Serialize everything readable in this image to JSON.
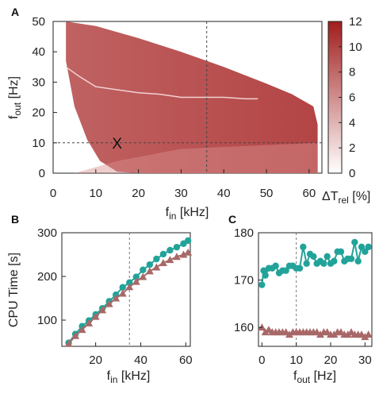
{
  "chart_data": [
    {
      "panel": "A",
      "type": "heatmap",
      "xlabel": "f",
      "xlabel_sub": "in",
      "xlabel_unit": " [kHz]",
      "ylabel": "f",
      "ylabel_sub": "out",
      "ylabel_unit": " [Hz]",
      "xlim": [
        0,
        63
      ],
      "ylim": [
        0,
        50
      ],
      "xticks": [
        "0",
        "10",
        "20",
        "30",
        "40",
        "50",
        "60"
      ],
      "yticks": [
        "0",
        "10",
        "20",
        "30",
        "40",
        "50"
      ],
      "colorbar": {
        "label": "ΔT",
        "label_sub": "rel",
        "label_unit": " [%]",
        "range": [
          0,
          12
        ],
        "ticks": [
          "0",
          "2",
          "4",
          "6",
          "8",
          "10",
          "12"
        ],
        "color_low": "#ffffff",
        "color_high": "#a11d1d"
      },
      "region_upper": {
        "x": [
          3,
          10,
          20,
          30,
          40,
          50,
          56,
          61,
          62
        ],
        "y": [
          50,
          48.5,
          44.5,
          40,
          35,
          29.5,
          26,
          22,
          16
        ]
      },
      "region_lower": {
        "x": [
          3,
          5,
          8,
          11,
          15,
          20,
          30,
          40,
          50,
          62
        ],
        "y": [
          37,
          22,
          11,
          4,
          0.5,
          0,
          0,
          0,
          0,
          0
        ]
      },
      "contour_line": {
        "x": [
          3,
          6,
          10,
          15,
          20,
          25,
          30,
          35,
          40,
          45,
          48
        ],
        "y": [
          35,
          32,
          28.5,
          27.5,
          26.5,
          26,
          25,
          25,
          25,
          24.5,
          24.5
        ]
      },
      "dashed_v": 36,
      "dashed_h": 10,
      "marker": {
        "text": "X",
        "x": 15,
        "y": 10
      }
    },
    {
      "panel": "B",
      "type": "scatter",
      "xlabel": "f",
      "xlabel_sub": "in",
      "xlabel_unit": " [kHz]",
      "ylabel": "CPU Time [s]",
      "xlim": [
        5,
        62
      ],
      "ylim": [
        40,
        300
      ],
      "xticks": [
        "20",
        "40",
        "60"
      ],
      "yticks": [
        "100",
        "200",
        "300"
      ],
      "dashed_v": 35,
      "series": [
        {
          "color": "#22a39a",
          "marker": "circle",
          "x": [
            8,
            11,
            14,
            17,
            20,
            23,
            26,
            29,
            32,
            35,
            38,
            41,
            44,
            47,
            50,
            53,
            56,
            59,
            61
          ],
          "y": [
            48,
            68,
            86,
            99,
            113,
            127,
            143,
            158,
            175,
            186,
            199,
            215,
            227,
            240,
            251,
            260,
            267,
            275,
            282
          ]
        },
        {
          "color": "#a86868",
          "marker": "triangle",
          "x": [
            8,
            11,
            14,
            17,
            20,
            23,
            26,
            29,
            32,
            35,
            38,
            41,
            44,
            47,
            50,
            53,
            56,
            59,
            61
          ],
          "y": [
            46,
            64,
            78,
            93,
            108,
            123,
            137,
            150,
            161,
            176,
            188,
            199,
            212,
            221,
            231,
            238,
            245,
            250,
            255
          ]
        }
      ]
    },
    {
      "panel": "C",
      "type": "scatter",
      "xlabel": "f",
      "xlabel_sub": "out",
      "xlabel_unit": " [Hz]",
      "ylabel": "",
      "xlim": [
        -1,
        32
      ],
      "ylim": [
        156,
        180
      ],
      "xticks": [
        "0",
        "10",
        "20",
        "30"
      ],
      "yticks": [
        "160",
        "170",
        "180"
      ],
      "dashed_v": 10,
      "series": [
        {
          "color": "#22a39a",
          "marker": "circle",
          "x": [
            0,
            0.5,
            1,
            2,
            3,
            4,
            5,
            6,
            7,
            8,
            9,
            10,
            11,
            12,
            13,
            14,
            15,
            16,
            17,
            18,
            19,
            20,
            21,
            22,
            23,
            24,
            25,
            26,
            27,
            28,
            29,
            30,
            31
          ],
          "y": [
            169,
            172,
            171,
            172.5,
            172.5,
            173,
            171.5,
            172,
            172,
            173,
            173,
            172.5,
            172.5,
            177,
            173.5,
            175.5,
            175,
            173.5,
            174,
            173.5,
            175,
            173.5,
            174,
            176,
            176,
            174,
            174.5,
            174.5,
            178,
            174,
            177,
            176,
            177
          ]
        },
        {
          "color": "#a86868",
          "marker": "triangle",
          "x": [
            0,
            1,
            2,
            3,
            4,
            5,
            6,
            7,
            8,
            9,
            10,
            11,
            12,
            13,
            14,
            15,
            16,
            17,
            18,
            19,
            20,
            21,
            22,
            23,
            24,
            25,
            26,
            27,
            28,
            29,
            30,
            31
          ],
          "y": [
            160,
            159,
            159.5,
            159,
            159,
            159,
            159,
            159,
            158.5,
            159,
            159,
            159,
            159,
            159,
            159,
            159,
            159,
            158.5,
            159,
            159,
            158.5,
            158.5,
            159,
            159,
            158.5,
            158.5,
            159,
            158.5,
            158.5,
            158.5,
            158,
            158.5
          ]
        }
      ]
    }
  ]
}
